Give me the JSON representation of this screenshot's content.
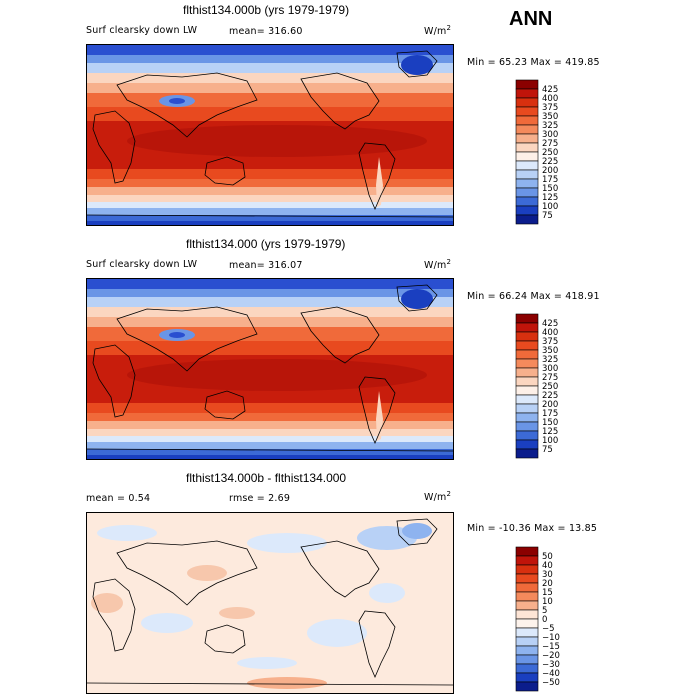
{
  "season": "ANN",
  "panels": [
    {
      "id": "p1",
      "title": "flthist134.000b (yrs 1979-1979)",
      "variable": "Surf clearsky down LW",
      "mean_text": "mean= 316.60",
      "units_base": "W/m",
      "units_sup": "2",
      "minmax": "Min =  65.23 Max = 419.85",
      "kind": "abs",
      "colorbar_labels": [
        "425",
        "400",
        "375",
        "350",
        "325",
        "300",
        "275",
        "250",
        "225",
        "200",
        "175",
        "150",
        "125",
        "100",
        "75"
      ]
    },
    {
      "id": "p2",
      "title": "flthist134.000 (yrs 1979-1979)",
      "variable": "Surf clearsky down LW",
      "mean_text": "mean= 316.07",
      "units_base": "W/m",
      "units_sup": "2",
      "minmax": "Min =  66.24 Max = 418.91",
      "kind": "abs",
      "colorbar_labels": [
        "425",
        "400",
        "375",
        "350",
        "325",
        "300",
        "275",
        "250",
        "225",
        "200",
        "175",
        "150",
        "125",
        "100",
        "75"
      ]
    },
    {
      "id": "p3",
      "title": "flthist134.000b - flthist134.000",
      "variable": "",
      "mean_text": "mean =    0.54",
      "rmse_text": "rmse =    2.69",
      "units_base": "W/m",
      "units_sup": "2",
      "minmax": "Min = -10.36 Max =  13.85",
      "kind": "diff",
      "colorbar_labels": [
        "50",
        "40",
        "30",
        "20",
        "15",
        "10",
        "5",
        "0",
        "−5",
        "−10",
        "−15",
        "−20",
        "−30",
        "−40",
        "−50"
      ]
    }
  ],
  "colors": {
    "abs_scale": [
      "#8b0000",
      "#c0140a",
      "#d8300f",
      "#e84a1f",
      "#f06a3a",
      "#f48a5c",
      "#f7b08c",
      "#fbd6c0",
      "#fdf0e8",
      "#dce9fb",
      "#b8d1f6",
      "#8eb3ef",
      "#6a95e6",
      "#3c6ad6",
      "#1a3fc0",
      "#0b1d8c"
    ],
    "diff_scale": [
      "#8b0000",
      "#c0140a",
      "#d8300f",
      "#e84a1f",
      "#f06a3a",
      "#f48a5c",
      "#f7b08c",
      "#fde5d6",
      "#fdf3ec",
      "#dce9fb",
      "#b8d1f6",
      "#8eb3ef",
      "#6a95e6",
      "#3c6ad6",
      "#1a3fc0",
      "#0b1d8c"
    ]
  }
}
